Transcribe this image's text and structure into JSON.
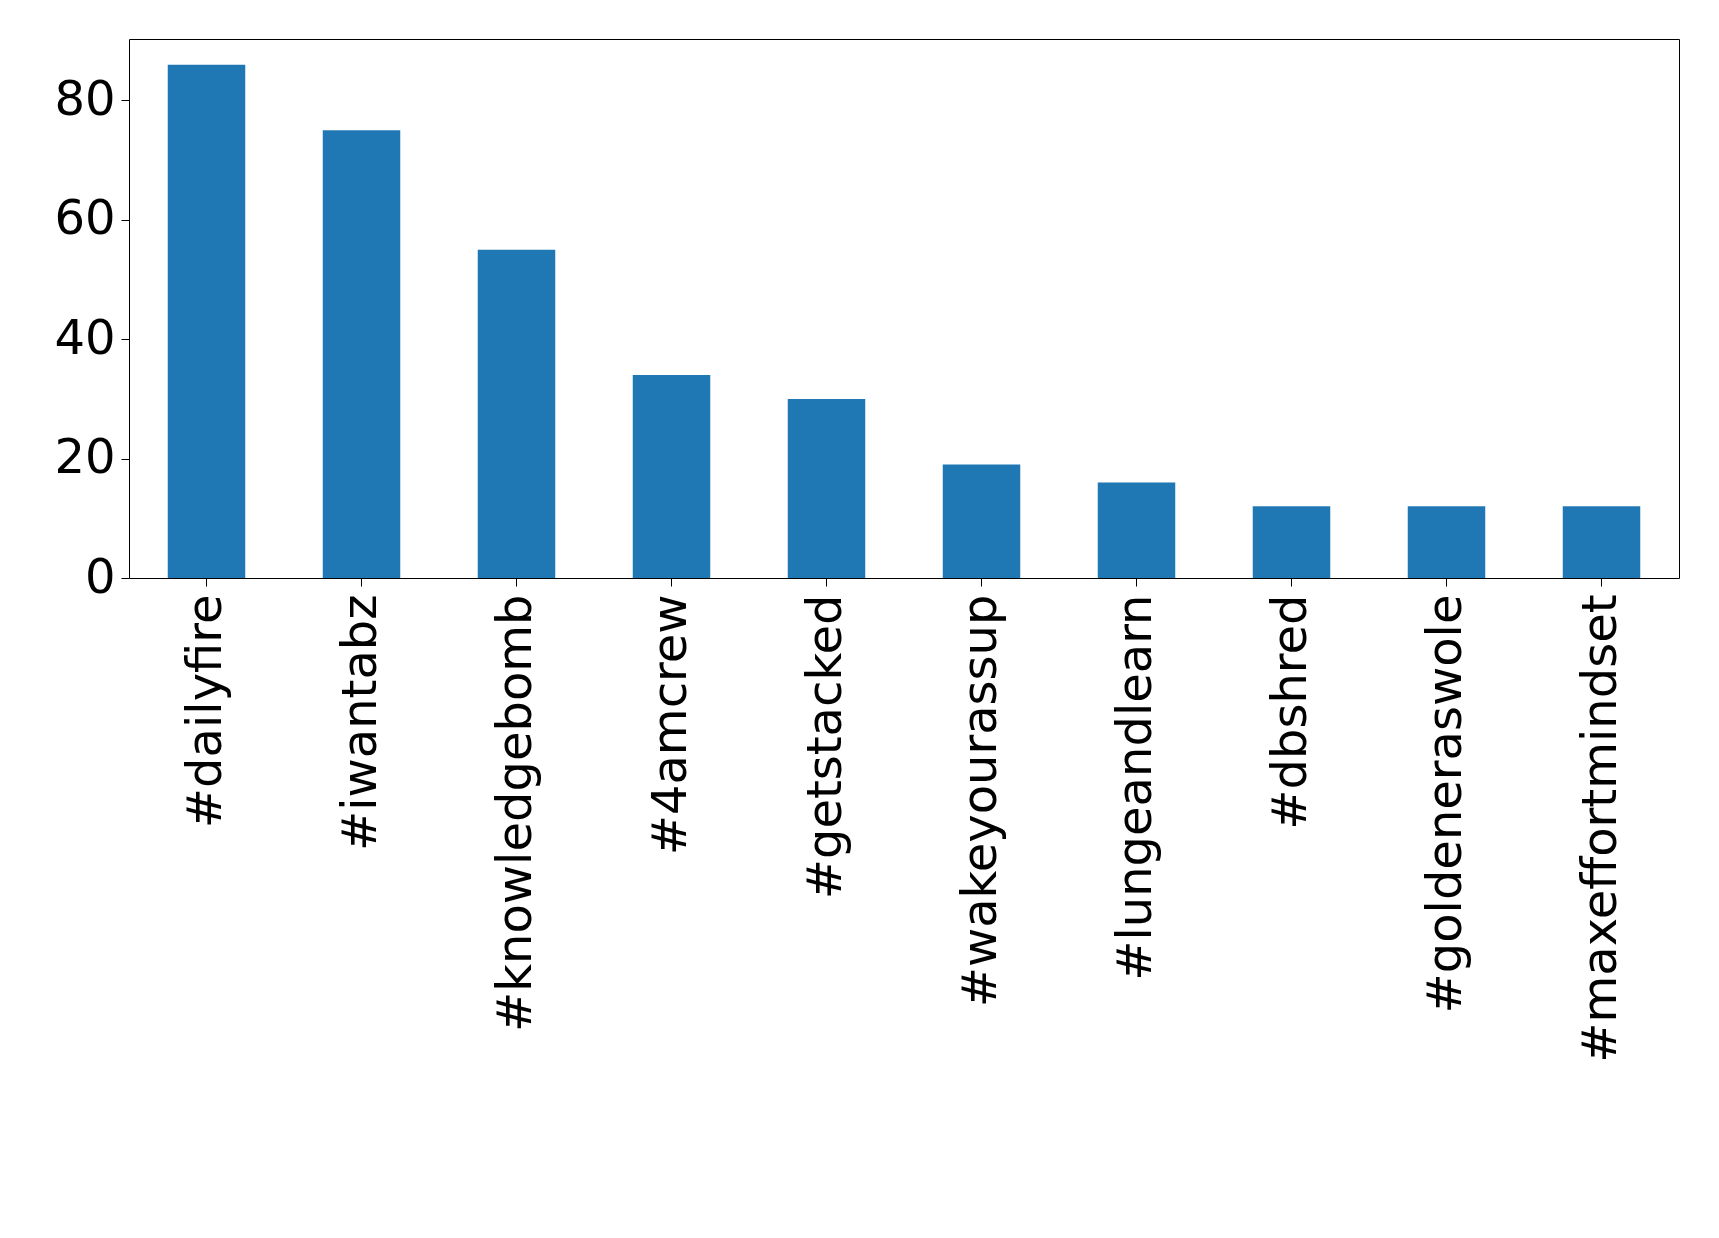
{
  "chart_data": {
    "type": "bar",
    "categories": [
      "#dailyfire",
      "#iwantabz",
      "#knowledgebomb",
      "#4amcrew",
      "#getstacked",
      "#wakeyourassup",
      "#lungeandlearn",
      "#dbshred",
      "#goldeneraswole",
      "#maxeffortmindset"
    ],
    "values": [
      86,
      75,
      55,
      34,
      30,
      19,
      16,
      12,
      12,
      12
    ],
    "color": "#1f77b4",
    "ylim": [
      0,
      90.3
    ],
    "yticks": [
      0,
      20,
      40,
      60,
      80
    ],
    "grid": false
  }
}
